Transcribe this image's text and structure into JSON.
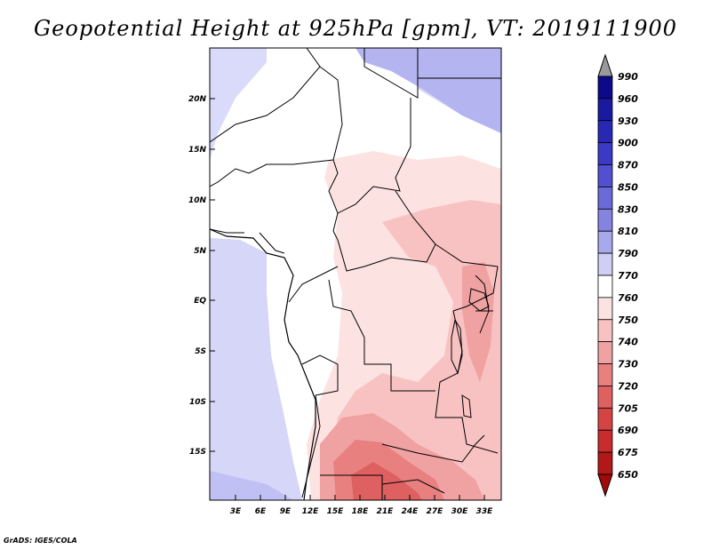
{
  "title": "Geopotential Height at 925hPa [gpm], VT: 2019111900",
  "credit": "GrADS: IGES/COLA",
  "axes": {
    "y_ticks": [
      "20N",
      "15N",
      "10N",
      "5N",
      "EQ",
      "5S",
      "10S",
      "15S"
    ],
    "x_ticks": [
      "3E",
      "6E",
      "9E",
      "12E",
      "15E",
      "18E",
      "21E",
      "24E",
      "27E",
      "30E",
      "33E"
    ]
  },
  "colorbar": {
    "levels": [
      "990",
      "960",
      "930",
      "900",
      "870",
      "850",
      "830",
      "810",
      "790",
      "770",
      "760",
      "750",
      "740",
      "730",
      "720",
      "705",
      "690",
      "675",
      "650"
    ],
    "colors": [
      "#9a9a9a",
      "#0a0a8a",
      "#1a1aa0",
      "#2828b4",
      "#3a3ac4",
      "#5050d0",
      "#6a6ad8",
      "#8484e0",
      "#a8a8ec",
      "#cfcff6",
      "#ffffff",
      "#fde2e2",
      "#f8c2c2",
      "#f0a2a2",
      "#e88080",
      "#de6060",
      "#d44444",
      "#c82c2c",
      "#b21818",
      "#a00a0a"
    ]
  }
}
